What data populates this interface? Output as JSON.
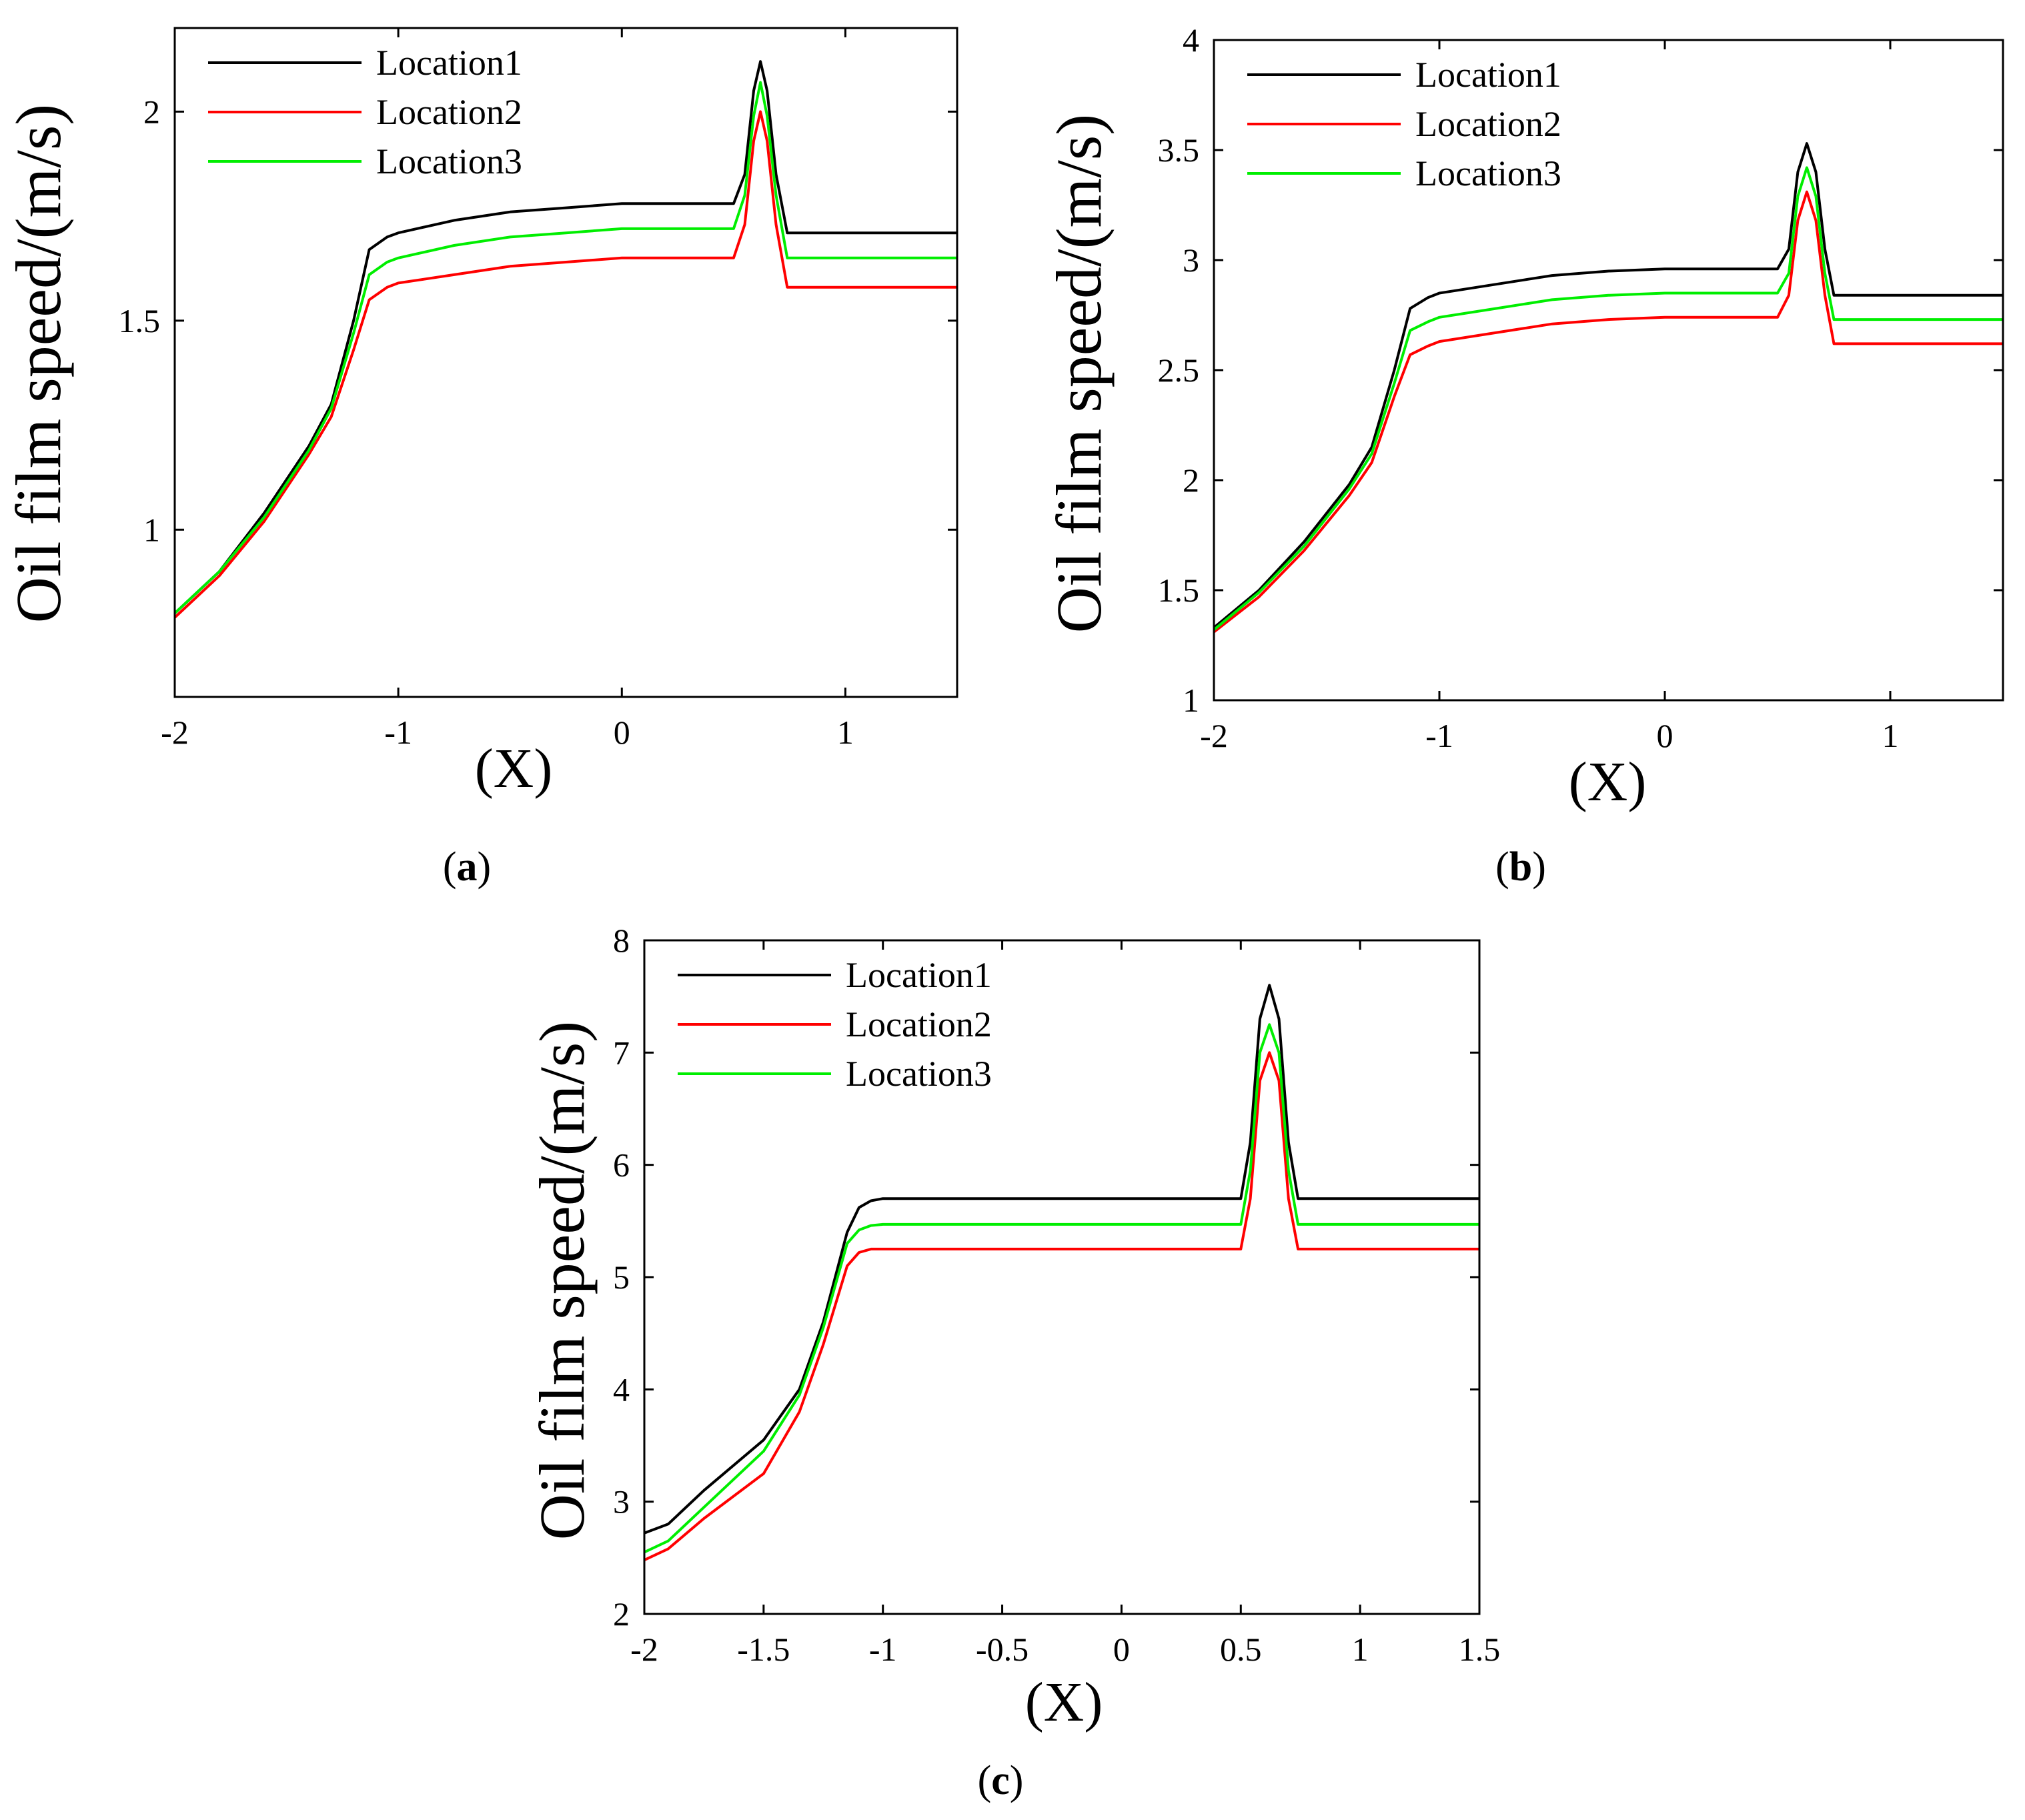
{
  "figure": {
    "panel_labels": [
      "a",
      "b",
      "c"
    ]
  },
  "colors": {
    "Location1": "#000000",
    "Location2": "#ff0000",
    "Location3": "#00ee00"
  },
  "chart_data": [
    {
      "id": "a",
      "type": "line",
      "title": "",
      "xlabel": "(X)",
      "ylabel": "Oil film speed/(m/s)",
      "xlim": [
        -2,
        1.5
      ],
      "ylim": [
        0.6,
        2.2
      ],
      "xticks": [
        -2,
        -1,
        0,
        1
      ],
      "xtick_labels": [
        "-2",
        "-1",
        "0",
        "1"
      ],
      "yticks": [
        1,
        1.5,
        2
      ],
      "ytick_labels": [
        "1",
        "1.5",
        "2"
      ],
      "legend": "top-left",
      "series": [
        {
          "name": "Location1",
          "color": "#000000",
          "x": [
            -2,
            -1.8,
            -1.6,
            -1.4,
            -1.3,
            -1.2,
            -1.13,
            -1.05,
            -1.0,
            -0.75,
            -0.5,
            -0.25,
            0,
            0.25,
            0.5,
            0.55,
            0.59,
            0.62,
            0.65,
            0.69,
            0.74,
            1.0,
            1.5
          ],
          "y": [
            0.8,
            0.9,
            1.04,
            1.2,
            1.3,
            1.5,
            1.67,
            1.7,
            1.71,
            1.74,
            1.76,
            1.77,
            1.78,
            1.78,
            1.78,
            1.85,
            2.05,
            2.12,
            2.05,
            1.85,
            1.71,
            1.71,
            1.71
          ]
        },
        {
          "name": "Location2",
          "color": "#ff0000",
          "x": [
            -2,
            -1.8,
            -1.6,
            -1.4,
            -1.3,
            -1.2,
            -1.13,
            -1.05,
            -1.0,
            -0.75,
            -0.5,
            -0.25,
            0,
            0.25,
            0.5,
            0.55,
            0.59,
            0.62,
            0.65,
            0.69,
            0.74,
            1.0,
            1.5
          ],
          "y": [
            0.79,
            0.89,
            1.02,
            1.18,
            1.27,
            1.43,
            1.55,
            1.58,
            1.59,
            1.61,
            1.63,
            1.64,
            1.65,
            1.65,
            1.65,
            1.73,
            1.93,
            2.0,
            1.93,
            1.73,
            1.58,
            1.58,
            1.58
          ]
        },
        {
          "name": "Location3",
          "color": "#00ee00",
          "x": [
            -2,
            -1.8,
            -1.6,
            -1.4,
            -1.3,
            -1.2,
            -1.13,
            -1.05,
            -1.0,
            -0.75,
            -0.5,
            -0.25,
            0,
            0.25,
            0.5,
            0.55,
            0.59,
            0.62,
            0.65,
            0.69,
            0.74,
            1.0,
            1.5
          ],
          "y": [
            0.8,
            0.9,
            1.03,
            1.19,
            1.29,
            1.47,
            1.61,
            1.64,
            1.65,
            1.68,
            1.7,
            1.71,
            1.72,
            1.72,
            1.72,
            1.8,
            1.99,
            2.07,
            1.99,
            1.8,
            1.65,
            1.65,
            1.65
          ]
        }
      ]
    },
    {
      "id": "b",
      "type": "line",
      "title": "",
      "xlabel": "(X)",
      "ylabel": "Oil film speed/(m/s)",
      "xlim": [
        -2,
        1.5
      ],
      "ylim": [
        1,
        4
      ],
      "xticks": [
        -2,
        -1,
        0,
        1
      ],
      "xtick_labels": [
        "-2",
        "-1",
        "0",
        "1"
      ],
      "yticks": [
        1,
        1.5,
        2,
        2.5,
        3,
        3.5,
        4
      ],
      "ytick_labels": [
        "1",
        "1.5",
        "2",
        "2.5",
        "3",
        "3.5",
        "4"
      ],
      "legend": "top-left",
      "series": [
        {
          "name": "Location1",
          "color": "#000000",
          "x": [
            -2,
            -1.8,
            -1.6,
            -1.4,
            -1.3,
            -1.2,
            -1.13,
            -1.05,
            -1.0,
            -0.75,
            -0.5,
            -0.25,
            0,
            0.25,
            0.5,
            0.55,
            0.59,
            0.63,
            0.67,
            0.71,
            0.75,
            1.0,
            1.5
          ],
          "y": [
            1.33,
            1.5,
            1.72,
            1.98,
            2.15,
            2.5,
            2.78,
            2.83,
            2.85,
            2.89,
            2.93,
            2.95,
            2.96,
            2.96,
            2.96,
            3.05,
            3.4,
            3.53,
            3.4,
            3.05,
            2.84,
            2.84,
            2.84
          ]
        },
        {
          "name": "Location2",
          "color": "#ff0000",
          "x": [
            -2,
            -1.8,
            -1.6,
            -1.4,
            -1.3,
            -1.2,
            -1.13,
            -1.05,
            -1.0,
            -0.75,
            -0.5,
            -0.25,
            0,
            0.25,
            0.5,
            0.55,
            0.59,
            0.63,
            0.67,
            0.71,
            0.75,
            1.0,
            1.5
          ],
          "y": [
            1.31,
            1.47,
            1.68,
            1.93,
            2.08,
            2.38,
            2.57,
            2.61,
            2.63,
            2.67,
            2.71,
            2.73,
            2.74,
            2.74,
            2.74,
            2.84,
            3.18,
            3.31,
            3.18,
            2.84,
            2.62,
            2.62,
            2.62
          ]
        },
        {
          "name": "Location3",
          "color": "#00ee00",
          "x": [
            -2,
            -1.8,
            -1.6,
            -1.4,
            -1.3,
            -1.2,
            -1.13,
            -1.05,
            -1.0,
            -0.75,
            -0.5,
            -0.25,
            0,
            0.25,
            0.5,
            0.55,
            0.59,
            0.63,
            0.67,
            0.71,
            0.75,
            1.0,
            1.5
          ],
          "y": [
            1.32,
            1.49,
            1.7,
            1.96,
            2.12,
            2.44,
            2.68,
            2.72,
            2.74,
            2.78,
            2.82,
            2.84,
            2.85,
            2.85,
            2.85,
            2.94,
            3.29,
            3.42,
            3.29,
            2.94,
            2.73,
            2.73,
            2.73
          ]
        }
      ]
    },
    {
      "id": "c",
      "type": "line",
      "title": "",
      "xlabel": "(X)",
      "ylabel": "Oil film speed/(m/s)",
      "xlim": [
        -2,
        1.5
      ],
      "ylim": [
        2,
        8
      ],
      "xticks": [
        -2,
        -1.5,
        -1,
        -0.5,
        0,
        0.5,
        1,
        1.5
      ],
      "xtick_labels": [
        "-2",
        "-1.5",
        "-1",
        "-0.5",
        "0",
        "0.5",
        "1",
        "1.5"
      ],
      "yticks": [
        2,
        3,
        4,
        5,
        6,
        7,
        8
      ],
      "ytick_labels": [
        "2",
        "3",
        "4",
        "5",
        "6",
        "7",
        "8"
      ],
      "legend": "top-left",
      "series": [
        {
          "name": "Location1",
          "color": "#000000",
          "x": [
            -2,
            -1.9,
            -1.75,
            -1.5,
            -1.35,
            -1.25,
            -1.15,
            -1.1,
            -1.05,
            -1.0,
            -0.5,
            0,
            0.5,
            0.54,
            0.58,
            0.62,
            0.66,
            0.7,
            0.74,
            1.0,
            1.5
          ],
          "y": [
            2.72,
            2.8,
            3.1,
            3.55,
            4.0,
            4.6,
            5.4,
            5.62,
            5.68,
            5.7,
            5.7,
            5.7,
            5.7,
            6.2,
            7.3,
            7.6,
            7.3,
            6.2,
            5.7,
            5.7,
            5.7
          ]
        },
        {
          "name": "Location2",
          "color": "#ff0000",
          "x": [
            -2,
            -1.9,
            -1.75,
            -1.5,
            -1.35,
            -1.25,
            -1.15,
            -1.1,
            -1.05,
            -1.0,
            -0.5,
            0,
            0.5,
            0.54,
            0.58,
            0.62,
            0.66,
            0.7,
            0.74,
            1.0,
            1.5
          ],
          "y": [
            2.48,
            2.58,
            2.85,
            3.25,
            3.8,
            4.4,
            5.1,
            5.22,
            5.25,
            5.25,
            5.25,
            5.25,
            5.25,
            5.7,
            6.75,
            7.0,
            6.75,
            5.7,
            5.25,
            5.25,
            5.25
          ]
        },
        {
          "name": "Location3",
          "color": "#00ee00",
          "x": [
            -2,
            -1.9,
            -1.75,
            -1.5,
            -1.35,
            -1.25,
            -1.15,
            -1.1,
            -1.05,
            -1.0,
            -0.5,
            0,
            0.5,
            0.54,
            0.58,
            0.62,
            0.66,
            0.7,
            0.74,
            1.0,
            1.5
          ],
          "y": [
            2.55,
            2.65,
            2.95,
            3.45,
            3.95,
            4.55,
            5.3,
            5.42,
            5.46,
            5.47,
            5.47,
            5.47,
            5.47,
            5.95,
            7.0,
            7.25,
            7.0,
            5.95,
            5.47,
            5.47,
            5.47
          ]
        }
      ]
    }
  ]
}
